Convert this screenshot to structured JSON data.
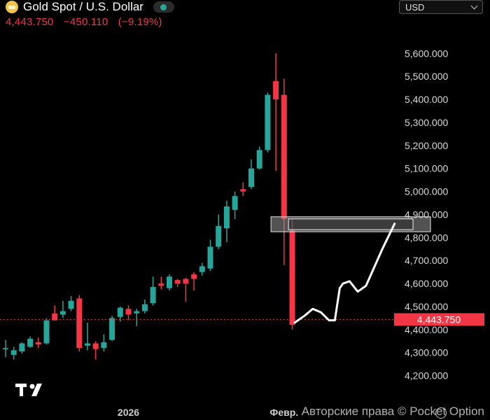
{
  "header": {
    "title": "Gold Spot / U.S. Dollar",
    "price": "4,443.750",
    "change": "−450.110",
    "change_pct": "(−9.19%)"
  },
  "currency": {
    "label": "USD"
  },
  "watermark": {
    "text": "Авторские права © Pocket Option"
  },
  "colors": {
    "up": "#26a69a",
    "down": "#f23645",
    "background": "#000000"
  },
  "chart_data": {
    "type": "candlestick",
    "ylim": [
      4150,
      5680
    ],
    "y_ticks": [
      4200,
      4300,
      4400,
      4500,
      4600,
      4700,
      4800,
      4900,
      5000,
      5100,
      5200,
      5300,
      5400,
      5500,
      5600
    ],
    "y_tick_labels": [
      "4,200.000",
      "4,300.000",
      "4,400.000",
      "4,500.000",
      "4,600.000",
      "4,700.000",
      "4,800.000",
      "4,900.000",
      "5,000.000",
      "5,100.000",
      "5,200.000",
      "5,300.000",
      "5,400.000",
      "5,500.000",
      "5,600.000"
    ],
    "x_labels": [
      {
        "index": 15,
        "label": "2026"
      },
      {
        "index": 34,
        "label": "Февр."
      }
    ],
    "last_price": 4443.75,
    "last_price_label": "4,443.750",
    "candles": [
      {
        "o": 4315,
        "h": 4355,
        "l": 4280,
        "c": 4320
      },
      {
        "o": 4290,
        "h": 4325,
        "l": 4270,
        "c": 4310
      },
      {
        "o": 4305,
        "h": 4345,
        "l": 4295,
        "c": 4340
      },
      {
        "o": 4325,
        "h": 4370,
        "l": 4320,
        "c": 4360
      },
      {
        "o": 4345,
        "h": 4365,
        "l": 4320,
        "c": 4335
      },
      {
        "o": 4340,
        "h": 4450,
        "l": 4335,
        "c": 4440
      },
      {
        "o": 4470,
        "h": 4505,
        "l": 4440,
        "c": 4440
      },
      {
        "o": 4465,
        "h": 4525,
        "l": 4450,
        "c": 4480
      },
      {
        "o": 4490,
        "h": 4545,
        "l": 4480,
        "c": 4525
      },
      {
        "o": 4535,
        "h": 4550,
        "l": 4305,
        "c": 4320
      },
      {
        "o": 4330,
        "h": 4430,
        "l": 4310,
        "c": 4340
      },
      {
        "o": 4340,
        "h": 4350,
        "l": 4270,
        "c": 4315
      },
      {
        "o": 4320,
        "h": 4380,
        "l": 4305,
        "c": 4345
      },
      {
        "o": 4355,
        "h": 4460,
        "l": 4350,
        "c": 4450
      },
      {
        "o": 4455,
        "h": 4500,
        "l": 4435,
        "c": 4495
      },
      {
        "o": 4490,
        "h": 4505,
        "l": 4440,
        "c": 4465
      },
      {
        "o": 4470,
        "h": 4490,
        "l": 4415,
        "c": 4480
      },
      {
        "o": 4480,
        "h": 4530,
        "l": 4470,
        "c": 4510
      },
      {
        "o": 4515,
        "h": 4630,
        "l": 4505,
        "c": 4585
      },
      {
        "o": 4600,
        "h": 4630,
        "l": 4575,
        "c": 4590
      },
      {
        "o": 4580,
        "h": 4640,
        "l": 4570,
        "c": 4630
      },
      {
        "o": 4615,
        "h": 4620,
        "l": 4585,
        "c": 4600
      },
      {
        "o": 4620,
        "h": 4625,
        "l": 4520,
        "c": 4600
      },
      {
        "o": 4640,
        "h": 4650,
        "l": 4570,
        "c": 4620
      },
      {
        "o": 4650,
        "h": 4690,
        "l": 4635,
        "c": 4675
      },
      {
        "o": 4665,
        "h": 4790,
        "l": 4655,
        "c": 4760
      },
      {
        "o": 4760,
        "h": 4900,
        "l": 4750,
        "c": 4850
      },
      {
        "o": 4840,
        "h": 4960,
        "l": 4780,
        "c": 4935
      },
      {
        "o": 4920,
        "h": 5000,
        "l": 4880,
        "c": 4980
      },
      {
        "o": 5010,
        "h": 5040,
        "l": 4980,
        "c": 5000
      },
      {
        "o": 5020,
        "h": 5140,
        "l": 5010,
        "c": 5100
      },
      {
        "o": 5100,
        "h": 5195,
        "l": 5095,
        "c": 5180
      },
      {
        "o": 5180,
        "h": 5430,
        "l": 5170,
        "c": 5420
      },
      {
        "o": 5480,
        "h": 5600,
        "l": 5090,
        "c": 5400
      },
      {
        "o": 5420,
        "h": 5490,
        "l": 4680,
        "c": 4880
      },
      {
        "o": 4830,
        "h": 4880,
        "l": 4400,
        "c": 4420
      }
    ],
    "annotation": {
      "zone": {
        "y_low": 4825,
        "y_high": 4890,
        "x_start_index": 33,
        "x_end_index": 49
      },
      "hand_drawn_line": [
        {
          "i": 35.3,
          "y": 4430
        },
        {
          "i": 36.5,
          "y": 4460
        },
        {
          "i": 37.5,
          "y": 4490
        },
        {
          "i": 38.5,
          "y": 4475
        },
        {
          "i": 39.5,
          "y": 4440
        },
        {
          "i": 40.2,
          "y": 4440
        },
        {
          "i": 40.8,
          "y": 4580
        },
        {
          "i": 41.2,
          "y": 4600
        },
        {
          "i": 42,
          "y": 4610
        },
        {
          "i": 43,
          "y": 4565
        },
        {
          "i": 44,
          "y": 4590
        },
        {
          "i": 46,
          "y": 4750
        },
        {
          "i": 47.5,
          "y": 4860
        }
      ]
    }
  }
}
